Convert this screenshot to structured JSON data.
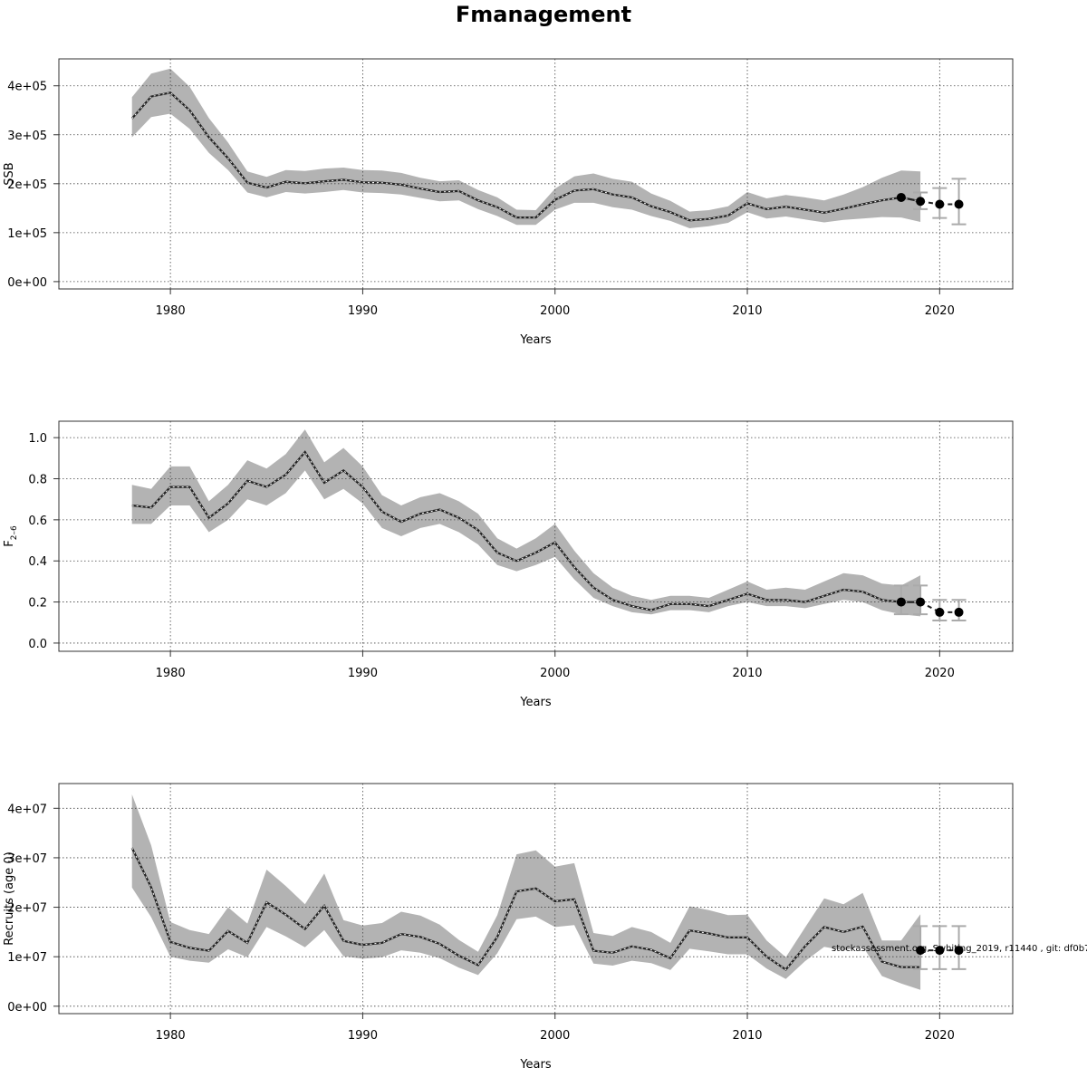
{
  "figure": {
    "title": "Fmanagement",
    "footnote": "stockassessment.org, Swhiting_2019, r11440 , git: df0b7"
  },
  "chart_data": [
    {
      "type": "line",
      "id": "ssb",
      "ylabel": "SSB",
      "xlabel": "Years",
      "xlim": [
        1974.2,
        2023.8
      ],
      "ylim": [
        -15000,
        455000
      ],
      "xticks": [
        1980,
        1990,
        2000,
        2010,
        2020
      ],
      "yticks": [
        0,
        100000,
        200000,
        300000,
        400000
      ],
      "ytick_labels": [
        "0e+00",
        "1e+05",
        "2e+05",
        "3e+05",
        "4e+05"
      ],
      "grid": true,
      "series": [
        {
          "role": "estimate",
          "x": [
            1978,
            1979,
            1980,
            1981,
            1982,
            1983,
            1984,
            1985,
            1986,
            1987,
            1988,
            1989,
            1990,
            1991,
            1992,
            1993,
            1994,
            1995,
            1996,
            1997,
            1998,
            1999,
            2000,
            2001,
            2002,
            2003,
            2004,
            2005,
            2006,
            2007,
            2008,
            2009,
            2010,
            2011,
            2012,
            2013,
            2014,
            2015,
            2016,
            2017,
            2018,
            2019
          ],
          "values": [
            333000,
            378000,
            386000,
            350000,
            295000,
            252000,
            202000,
            192000,
            204000,
            201000,
            205000,
            208000,
            203000,
            202000,
            198000,
            190000,
            183000,
            185000,
            166000,
            152000,
            131000,
            131000,
            167000,
            186000,
            189000,
            178000,
            172000,
            154000,
            142000,
            125000,
            128000,
            135000,
            160000,
            148000,
            153000,
            147000,
            141000,
            149000,
            158000,
            166000,
            172000,
            164000
          ],
          "lower": [
            295000,
            336000,
            343000,
            312000,
            263000,
            228000,
            182000,
            172000,
            183000,
            180000,
            183000,
            187000,
            182000,
            181000,
            178000,
            171000,
            164000,
            166000,
            148000,
            134000,
            116000,
            116000,
            147000,
            161000,
            161000,
            152000,
            147000,
            134000,
            124000,
            109000,
            113000,
            120000,
            142000,
            129000,
            133000,
            127000,
            121000,
            126000,
            129000,
            132000,
            131000,
            122000
          ],
          "upper": [
            377000,
            425000,
            435000,
            398000,
            334000,
            284000,
            225000,
            214000,
            228000,
            226000,
            231000,
            233000,
            228000,
            227000,
            222000,
            212000,
            205000,
            207000,
            187000,
            172000,
            147000,
            146000,
            190000,
            215000,
            221000,
            210000,
            204000,
            180000,
            165000,
            143000,
            146000,
            154000,
            183000,
            170000,
            177000,
            172000,
            166000,
            178000,
            193000,
            212000,
            227000,
            225000
          ]
        },
        {
          "role": "forecast",
          "x": [
            2018,
            2019,
            2020,
            2021
          ],
          "values": [
            172000,
            164000,
            158000,
            158000
          ],
          "lower": [
            null,
            148000,
            130000,
            117000
          ],
          "upper": [
            null,
            182000,
            191000,
            210000
          ]
        }
      ]
    },
    {
      "type": "line",
      "id": "fbar",
      "ylabel": "F",
      "ylabel_subscript": "2–6",
      "xlabel": "Years",
      "xlim": [
        1974.2,
        2023.8
      ],
      "ylim": [
        -0.04,
        1.08
      ],
      "xticks": [
        1980,
        1990,
        2000,
        2010,
        2020
      ],
      "yticks": [
        0.0,
        0.2,
        0.4,
        0.6,
        0.8,
        1.0
      ],
      "ytick_labels": [
        "0.0",
        "0.2",
        "0.4",
        "0.6",
        "0.8",
        "1.0"
      ],
      "grid": true,
      "series": [
        {
          "role": "estimate",
          "x": [
            1978,
            1979,
            1980,
            1981,
            1982,
            1983,
            1984,
            1985,
            1986,
            1987,
            1988,
            1989,
            1990,
            1991,
            1992,
            1993,
            1994,
            1995,
            1996,
            1997,
            1998,
            1999,
            2000,
            2001,
            2002,
            2003,
            2004,
            2005,
            2006,
            2007,
            2008,
            2009,
            2010,
            2011,
            2012,
            2013,
            2014,
            2015,
            2016,
            2017,
            2018,
            2019
          ],
          "values": [
            0.67,
            0.66,
            0.76,
            0.76,
            0.61,
            0.68,
            0.79,
            0.76,
            0.82,
            0.93,
            0.78,
            0.84,
            0.76,
            0.64,
            0.59,
            0.63,
            0.65,
            0.61,
            0.55,
            0.44,
            0.4,
            0.44,
            0.49,
            0.37,
            0.27,
            0.21,
            0.18,
            0.16,
            0.19,
            0.19,
            0.18,
            0.21,
            0.24,
            0.21,
            0.21,
            0.2,
            0.23,
            0.26,
            0.25,
            0.21,
            0.2,
            0.2
          ],
          "lower": [
            0.58,
            0.58,
            0.67,
            0.67,
            0.54,
            0.6,
            0.7,
            0.67,
            0.73,
            0.84,
            0.7,
            0.75,
            0.68,
            0.56,
            0.52,
            0.56,
            0.58,
            0.54,
            0.48,
            0.38,
            0.35,
            0.38,
            0.42,
            0.31,
            0.22,
            0.18,
            0.15,
            0.14,
            0.16,
            0.16,
            0.15,
            0.18,
            0.2,
            0.18,
            0.18,
            0.17,
            0.19,
            0.21,
            0.2,
            0.16,
            0.14,
            0.13
          ],
          "upper": [
            0.77,
            0.75,
            0.86,
            0.86,
            0.69,
            0.77,
            0.89,
            0.85,
            0.92,
            1.04,
            0.88,
            0.95,
            0.86,
            0.72,
            0.67,
            0.71,
            0.73,
            0.69,
            0.63,
            0.51,
            0.46,
            0.51,
            0.58,
            0.45,
            0.34,
            0.27,
            0.23,
            0.21,
            0.23,
            0.23,
            0.22,
            0.26,
            0.3,
            0.26,
            0.27,
            0.26,
            0.3,
            0.34,
            0.33,
            0.29,
            0.28,
            0.33
          ]
        },
        {
          "role": "forecast",
          "x": [
            2018,
            2019,
            2020,
            2021
          ],
          "values": [
            0.2,
            0.2,
            0.15,
            0.15
          ],
          "lower": [
            0.14,
            0.14,
            0.11,
            0.11
          ],
          "upper": [
            0.28,
            0.28,
            0.21,
            0.21
          ]
        }
      ]
    },
    {
      "type": "line",
      "id": "recruits",
      "ylabel": "Recruits (age 0)",
      "xlabel": "Years",
      "xlim": [
        1974.2,
        2023.8
      ],
      "ylim": [
        -1500000,
        45000000
      ],
      "xticks": [
        1980,
        1990,
        2000,
        2010,
        2020
      ],
      "yticks": [
        0,
        10000000,
        20000000,
        30000000,
        40000000
      ],
      "ytick_labels": [
        "0e+00",
        "1e+07",
        "2e+07",
        "3e+07",
        "4e+07"
      ],
      "grid": true,
      "series": [
        {
          "role": "estimate",
          "x": [
            1978,
            1979,
            1980,
            1981,
            1982,
            1983,
            1984,
            1985,
            1986,
            1987,
            1988,
            1989,
            1990,
            1991,
            1992,
            1993,
            1994,
            1995,
            1996,
            1997,
            1998,
            1999,
            2000,
            2001,
            2002,
            2003,
            2004,
            2005,
            2006,
            2007,
            2008,
            2009,
            2010,
            2011,
            2012,
            2013,
            2014,
            2015,
            2016,
            2017,
            2018,
            2019
          ],
          "values": [
            32000000,
            24000000,
            13000000,
            11800000,
            11200000,
            15200000,
            12800000,
            21000000,
            18500000,
            15600000,
            20300000,
            13200000,
            12400000,
            12800000,
            14600000,
            14000000,
            12600000,
            10200000,
            8300000,
            14000000,
            23200000,
            23800000,
            21200000,
            21600000,
            11200000,
            10800000,
            12100000,
            11400000,
            9700000,
            15300000,
            14700000,
            13900000,
            13900000,
            10000000,
            7400000,
            12100000,
            16000000,
            15000000,
            16100000,
            9000000,
            7900000,
            7900000
          ],
          "lower": [
            24000000,
            18000000,
            10000000,
            9200000,
            8800000,
            11500000,
            9900000,
            16000000,
            14100000,
            11900000,
            15400000,
            10100000,
            9600000,
            9900000,
            11300000,
            10800000,
            9700000,
            7800000,
            6300000,
            10700000,
            17600000,
            18100000,
            16000000,
            16400000,
            8600000,
            8200000,
            9200000,
            8700000,
            7300000,
            11600000,
            11100000,
            10500000,
            10500000,
            7600000,
            5500000,
            9100000,
            12000000,
            11300000,
            12100000,
            6100000,
            4600000,
            3300000
          ],
          "upper": [
            42800000,
            32500000,
            17000000,
            15400000,
            14600000,
            20000000,
            16700000,
            27600000,
            24300000,
            20600000,
            26800000,
            17400000,
            16300000,
            16800000,
            19100000,
            18300000,
            16500000,
            13400000,
            11000000,
            18400000,
            30700000,
            31500000,
            28200000,
            28900000,
            14800000,
            14200000,
            16000000,
            15000000,
            12800000,
            20200000,
            19400000,
            18400000,
            18500000,
            13300000,
            9900000,
            15900000,
            21800000,
            20600000,
            22900000,
            13300000,
            13300000,
            18600000
          ]
        },
        {
          "role": "forecast",
          "x": [
            2019,
            2020,
            2021
          ],
          "values": [
            11300000,
            11300000,
            11300000
          ],
          "lower": [
            7500000,
            7500000,
            7500000
          ],
          "upper": [
            16200000,
            16200000,
            16200000
          ]
        }
      ]
    }
  ]
}
